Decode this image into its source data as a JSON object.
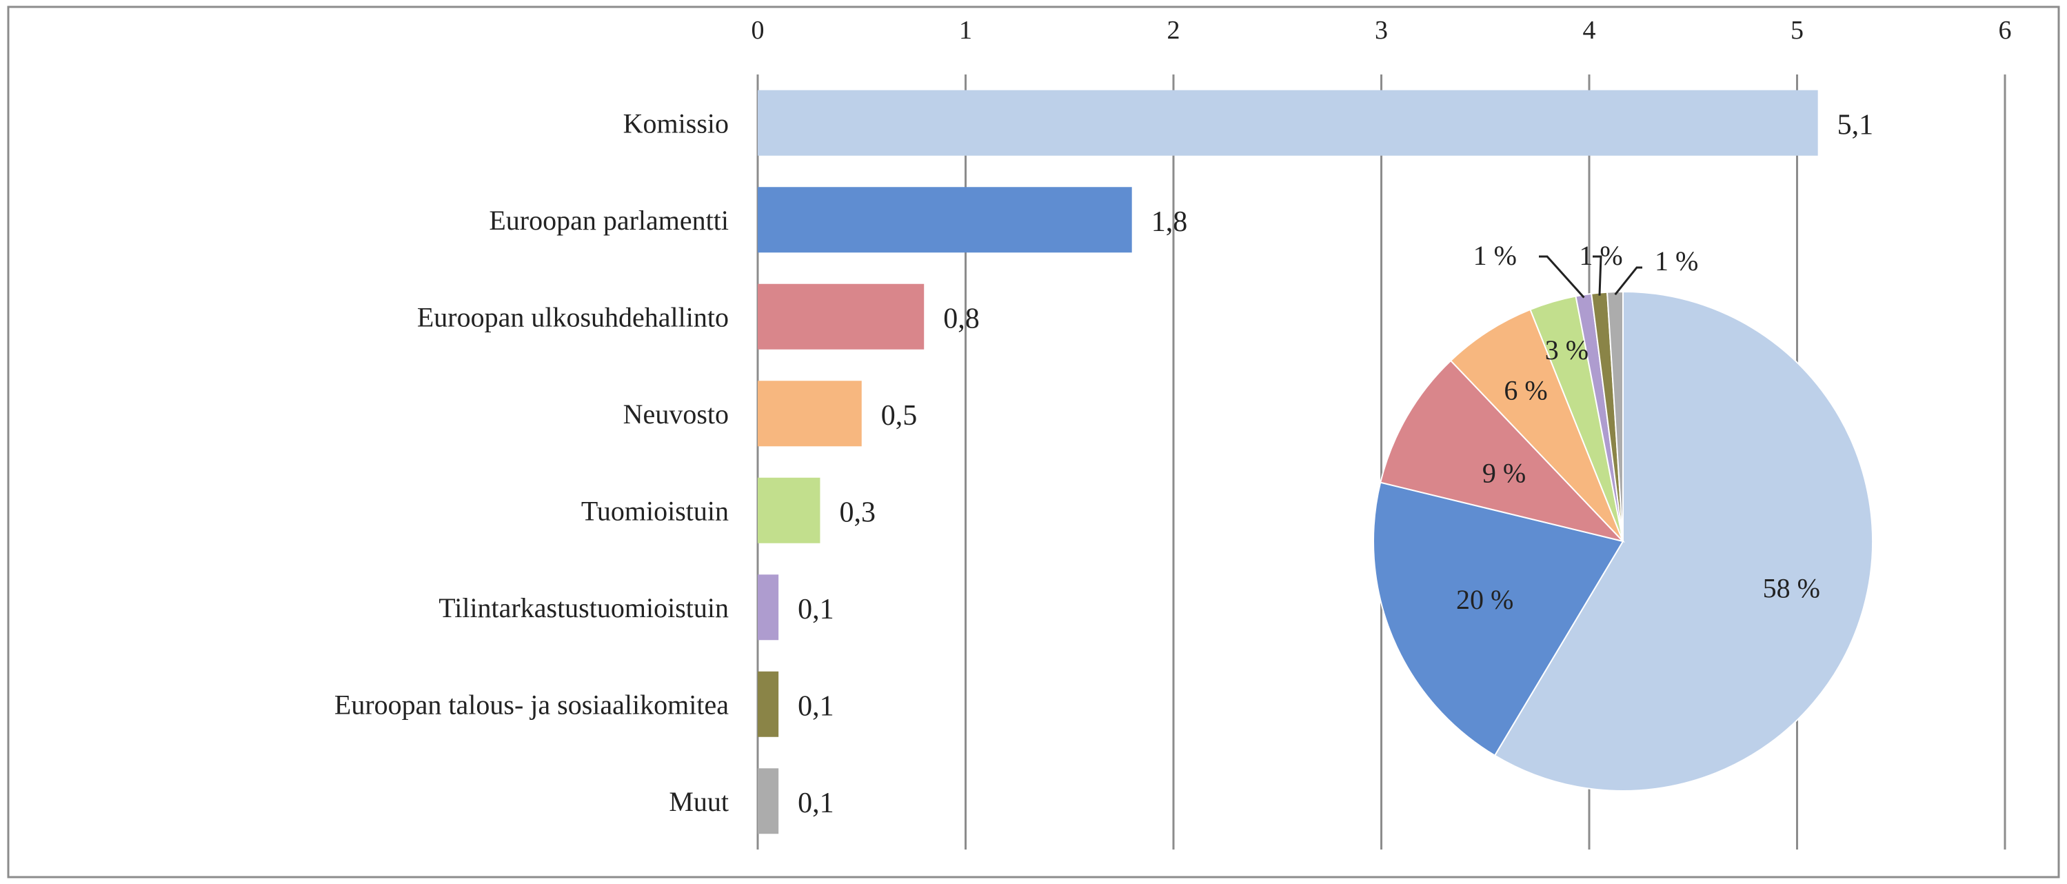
{
  "chart_data": [
    {
      "type": "bar",
      "orientation": "horizontal",
      "categories": [
        "Komissio",
        "Euroopan parlamentti",
        "Euroopan ulkosuhdehallinto",
        "Neuvosto",
        "Tuomioistuin",
        "Tilintarkastustuomioistuin",
        "Euroopan talous- ja sosiaalikomitea",
        "Muut"
      ],
      "values": [
        5.1,
        1.8,
        0.8,
        0.5,
        0.3,
        0.1,
        0.1,
        0.1
      ],
      "value_labels": [
        "5,1",
        "1,8",
        "0,8",
        "0,5",
        "0,3",
        "0,1",
        "0,1",
        "0,1"
      ],
      "xlim": [
        0,
        6
      ],
      "xticks": [
        "0",
        "1",
        "2",
        "3",
        "4",
        "5",
        "6"
      ],
      "xaxis_position": "top",
      "grid": true,
      "colors": [
        "#bdd0e9",
        "#5f8dd1",
        "#d9868b",
        "#f7b77f",
        "#c2df8d",
        "#ae9ccf",
        "#8a8447",
        "#acacac"
      ]
    },
    {
      "type": "pie",
      "labels": [
        "Komissio",
        "Euroopan parlamentti",
        "Euroopan ulkosuhdehallinto",
        "Neuvosto",
        "Tuomioistuin",
        "Tilintarkastustuomioistuin",
        "Euroopan talous- ja sosiaalikomitea",
        "Muut"
      ],
      "values": [
        58,
        20,
        9,
        6,
        3,
        1,
        1,
        1
      ],
      "value_labels": [
        "58 %",
        "20 %",
        "9 %",
        "6 %",
        "3 %",
        "1 %",
        "1 %",
        "1 %"
      ],
      "colors": [
        "#bdd0e9",
        "#5f8dd1",
        "#d9868b",
        "#f7b77f",
        "#c2df8d",
        "#ae9ccf",
        "#8a8447",
        "#acacac"
      ]
    }
  ]
}
